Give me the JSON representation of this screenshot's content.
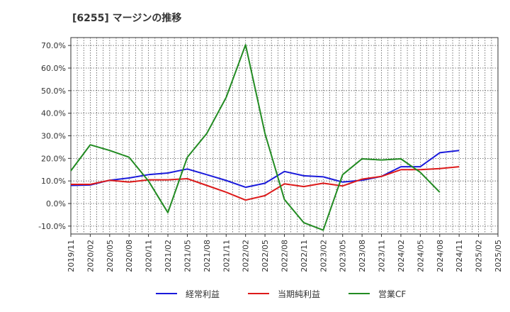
{
  "chart_data": {
    "type": "line",
    "title": "[6255]  マージンの推移",
    "xlabel": "",
    "ylabel": "",
    "ylim": [
      -13.5,
      73.5
    ],
    "yticks": [
      70,
      60,
      50,
      40,
      30,
      20,
      10,
      0,
      -10
    ],
    "ytick_labels": [
      "70.0%",
      "60.0%",
      "50.0%",
      "40.0%",
      "30.0%",
      "20.0%",
      "10.0%",
      "0.0%",
      "-10.0%"
    ],
    "x_tick_labels": [
      "2019/11",
      "2020/02",
      "2020/05",
      "2020/08",
      "2020/11",
      "2021/02",
      "2021/05",
      "2021/08",
      "2021/11",
      "2022/02",
      "2022/05",
      "2022/08",
      "2022/11",
      "2023/02",
      "2023/05",
      "2023/08",
      "2023/11",
      "2024/02",
      "2024/05",
      "2024/08",
      "2024/11",
      "2025/02",
      "2025/05"
    ],
    "grid": true,
    "legend_position": "bottom",
    "series": [
      {
        "name": "経常利益",
        "color": "#1a1adb",
        "x": [
          "2019/11",
          "2020/02",
          "2020/05",
          "2020/08",
          "2020/11",
          "2021/02",
          "2021/05",
          "2021/08",
          "2021/11",
          "2022/02",
          "2022/05",
          "2022/08",
          "2022/11",
          "2023/02",
          "2023/05",
          "2023/08",
          "2023/11",
          "2024/02",
          "2024/05",
          "2024/08",
          "2024/11"
        ],
        "values": [
          8.0,
          8.2,
          10.3,
          11.3,
          12.8,
          13.5,
          15.3,
          12.8,
          10.2,
          7.2,
          9.0,
          14.2,
          12.3,
          11.8,
          9.5,
          10.3,
          12.0,
          16.3,
          16.3,
          22.5,
          23.5
        ]
      },
      {
        "name": "当期純利益",
        "color": "#dd1a1a",
        "x": [
          "2019/11",
          "2020/02",
          "2020/05",
          "2020/08",
          "2020/11",
          "2021/02",
          "2021/05",
          "2021/08",
          "2021/11",
          "2022/02",
          "2022/05",
          "2022/08",
          "2022/11",
          "2023/02",
          "2023/05",
          "2023/08",
          "2023/11",
          "2024/02",
          "2024/05",
          "2024/08",
          "2024/11"
        ],
        "values": [
          8.5,
          8.5,
          10.3,
          9.5,
          10.5,
          10.5,
          11.0,
          8.0,
          5.0,
          1.5,
          3.5,
          8.7,
          7.5,
          9.0,
          7.8,
          10.8,
          12.0,
          15.0,
          15.0,
          15.5,
          16.3
        ]
      },
      {
        "name": "営業CF",
        "color": "#228b22",
        "x": [
          "2019/11",
          "2020/02",
          "2020/05",
          "2020/08",
          "2020/11",
          "2021/02",
          "2021/05",
          "2021/08",
          "2021/11",
          "2022/02",
          "2022/05",
          "2022/08",
          "2022/11",
          "2023/02",
          "2023/05",
          "2023/08",
          "2023/11",
          "2024/02",
          "2024/05",
          "2024/08"
        ],
        "values": [
          14.5,
          26.0,
          23.5,
          20.5,
          10.0,
          -4.0,
          20.5,
          31.0,
          47.0,
          70.3,
          31.0,
          1.8,
          -8.5,
          -11.8,
          12.8,
          19.8,
          19.3,
          19.8,
          13.8,
          5.0
        ]
      }
    ]
  }
}
